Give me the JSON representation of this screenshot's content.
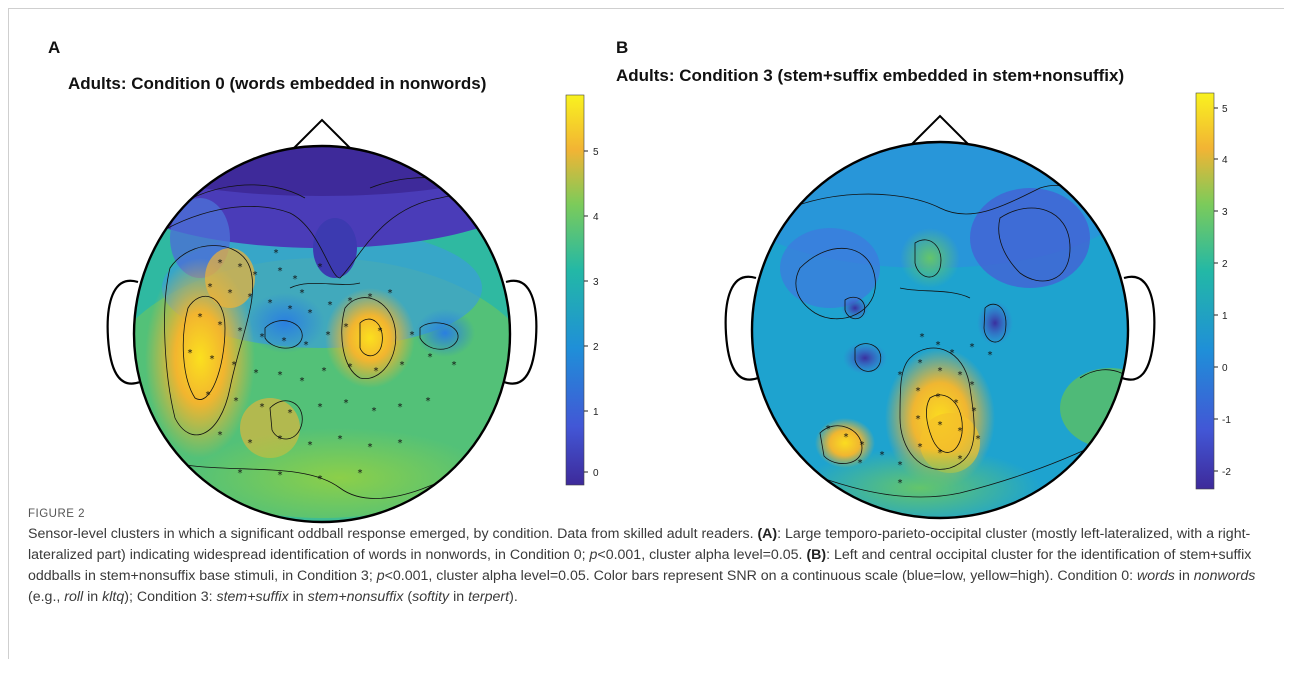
{
  "panels": [
    {
      "letter": "A",
      "title": "Adults: Condition 0 (words embedded in nonwords)",
      "colorbar_ticks": [
        "5",
        "4",
        "3",
        "2",
        "1",
        "0"
      ]
    },
    {
      "letter": "B",
      "title": "Adults: Condition 3 (stem+suffix embedded in stem+nonsuffix)",
      "colorbar_ticks": [
        "5",
        "4",
        "3",
        "2",
        "1",
        "0",
        "-1",
        "-2"
      ]
    }
  ],
  "figure_label": "FIGURE 2",
  "caption": {
    "p1": "Sensor-level clusters in which a significant oddball response emerged, by condition. Data from skilled adult readers. ",
    "a_label": "(A)",
    "p2": ": Large temporo-parieto-occipital cluster (mostly left-lateralized, with a right-lateralized part) indicating widespread identification of words in nonwords, in Condition 0; ",
    "p_italic": "p",
    "p3": "<0.001, cluster alpha level=0.05. ",
    "b_label": "(B)",
    "p4": ": Left and central occipital cluster for the identification of stem+suffix oddballs in stem+nonsuffix base stimuli, in Condition 3; ",
    "p_italic2": "p",
    "p5": "<0.001, cluster alpha level=0.05. Color bars represent SNR on a continuous scale (blue=low, yellow=high). Condition 0: ",
    "i1": "words",
    "t1": " in ",
    "i2": "nonwords",
    "t2": " (e.g., ",
    "i3": "roll",
    "t3": " in ",
    "i4": "kltq",
    "t4": "); Condition 3: ",
    "i5": "stem+suffix",
    "t5": " in ",
    "i6": "stem+nonsuffix",
    "t6": " (",
    "i7": "softity",
    "t7": " in ",
    "i8": "terpert",
    "t8": ")."
  },
  "colors": {
    "low": "#3e2a9a",
    "mid": "#1fa7c9",
    "high": "#f9e21f"
  }
}
